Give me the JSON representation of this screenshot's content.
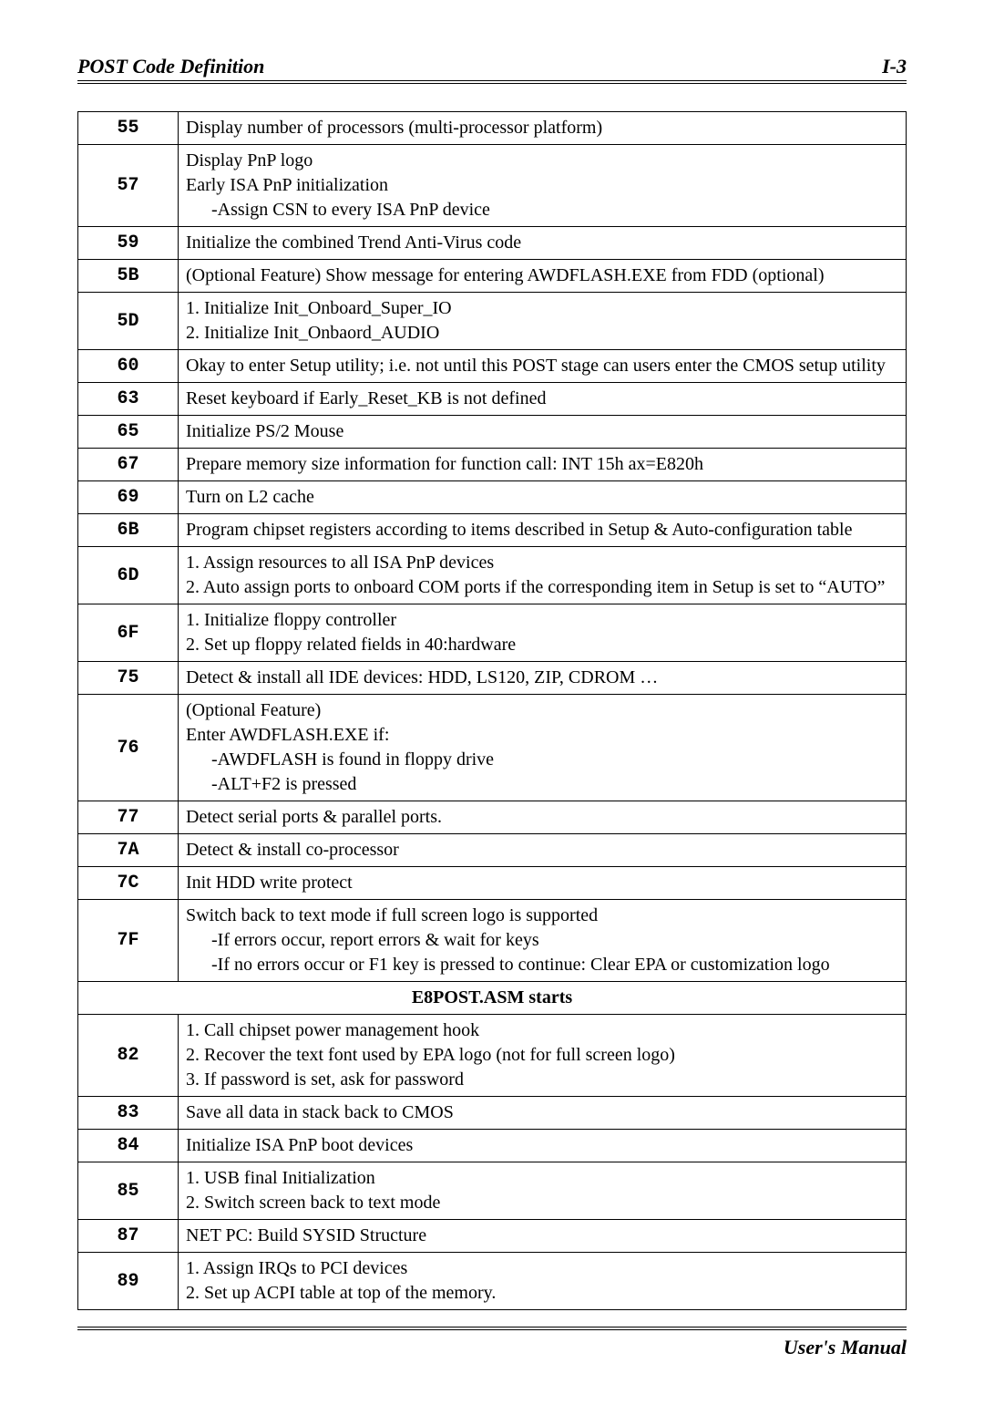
{
  "header": {
    "title": "POST Code Definition",
    "page": "I-3"
  },
  "footer": {
    "text": "User's Manual"
  },
  "section_label": "E8POST.ASM starts",
  "rows": [
    {
      "code": "55",
      "lines": [
        "Display number of processors (multi-processor platform)"
      ]
    },
    {
      "code": "57",
      "lines": [
        "Display PnP logo",
        "Early ISA PnP initialization",
        {
          "indent": 1,
          "text": "-Assign CSN to every ISA PnP device"
        }
      ]
    },
    {
      "code": "59",
      "lines": [
        "Initialize the combined Trend Anti-Virus code"
      ]
    },
    {
      "code": "5B",
      "lines": [
        "(Optional Feature) Show message for entering AWDFLASH.EXE from FDD (optional)"
      ]
    },
    {
      "code": "5D",
      "lines": [
        "1. Initialize Init_Onboard_Super_IO",
        "2. Initialize Init_Onbaord_AUDIO"
      ]
    },
    {
      "code": "60",
      "lines": [
        "Okay to enter Setup utility; i.e. not until this POST stage can users enter the CMOS setup utility"
      ]
    },
    {
      "code": "63",
      "lines": [
        "Reset keyboard if Early_Reset_KB is not defined"
      ]
    },
    {
      "code": "65",
      "lines": [
        "Initialize PS/2 Mouse"
      ]
    },
    {
      "code": "67",
      "lines": [
        "Prepare memory size information for function call: INT 15h ax=E820h"
      ]
    },
    {
      "code": "69",
      "lines": [
        "Turn on L2 cache"
      ]
    },
    {
      "code": "6B",
      "lines": [
        "Program chipset registers according to items described in Setup & Auto-configuration table"
      ]
    },
    {
      "code": "6D",
      "lines": [
        "1. Assign resources to all ISA PnP devices",
        {
          "indent": 0,
          "text": "2. Auto assign ports to onboard COM ports if the corresponding item in Setup is set to “AUTO”"
        }
      ]
    },
    {
      "code": "6F",
      "lines": [
        "1. Initialize floppy controller",
        "2. Set up floppy related fields in 40:hardware"
      ]
    },
    {
      "code": "75",
      "lines": [
        "Detect & install all IDE devices: HDD, LS120, ZIP, CDROM …"
      ]
    },
    {
      "code": "76",
      "lines": [
        "(Optional Feature)",
        "Enter AWDFLASH.EXE if:",
        {
          "indent": 1,
          "text": "-AWDFLASH is found in floppy drive"
        },
        {
          "indent": 1,
          "text": "-ALT+F2 is pressed"
        }
      ]
    },
    {
      "code": "77",
      "lines": [
        "Detect serial ports & parallel ports."
      ]
    },
    {
      "code": "7A",
      "lines": [
        "Detect & install co-processor"
      ]
    },
    {
      "code": "7C",
      "lines": [
        "Init HDD write protect"
      ]
    },
    {
      "code": "7F",
      "lines": [
        "Switch back to text mode if full screen logo is supported",
        {
          "indent": 1,
          "text": "-If errors occur, report errors & wait for keys"
        },
        {
          "indent": 1,
          "text": "-If no errors occur or F1 key is pressed to continue: Clear EPA or customization logo"
        }
      ]
    },
    {
      "section": true
    },
    {
      "code": "82",
      "lines": [
        "1. Call chipset power management hook",
        "2. Recover the text font used by EPA logo (not for full screen logo)",
        "3. If password is set, ask for password"
      ]
    },
    {
      "code": "83",
      "lines": [
        "Save all data in stack back to CMOS"
      ]
    },
    {
      "code": "84",
      "lines": [
        "Initialize ISA PnP boot devices"
      ]
    },
    {
      "code": "85",
      "lines": [
        "1. USB final Initialization",
        "2. Switch screen back to text mode"
      ]
    },
    {
      "code": "87",
      "lines": [
        "NET PC: Build SYSID Structure"
      ]
    },
    {
      "code": "89",
      "lines": [
        "1. Assign IRQs to PCI devices",
        "2. Set up ACPI table at top of the memory."
      ]
    }
  ]
}
